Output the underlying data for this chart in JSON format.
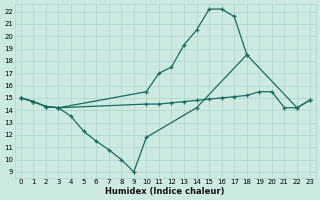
{
  "xlabel": "Humidex (Indice chaleur)",
  "bg_color": "#cce9e2",
  "grid_color": "#aed4cc",
  "line_color": "#1a6b60",
  "xlim": [
    -0.5,
    23.5
  ],
  "ylim": [
    8.5,
    22.6
  ],
  "xticks": [
    0,
    1,
    2,
    3,
    4,
    5,
    6,
    7,
    8,
    9,
    10,
    11,
    12,
    13,
    14,
    15,
    16,
    17,
    18,
    19,
    20,
    21,
    22,
    23
  ],
  "yticks": [
    9,
    10,
    11,
    12,
    13,
    14,
    15,
    16,
    17,
    18,
    19,
    20,
    21,
    22
  ],
  "line1_x": [
    0,
    1,
    2,
    3,
    10,
    11,
    12,
    13,
    14,
    15,
    16,
    17,
    18,
    22,
    23
  ],
  "line1_y": [
    15.0,
    14.7,
    14.3,
    14.2,
    15.5,
    17.0,
    17.5,
    19.3,
    20.5,
    22.2,
    22.2,
    21.6,
    18.5,
    14.2,
    14.8
  ],
  "line2_x": [
    0,
    1,
    2,
    3,
    4,
    5,
    6,
    7,
    8,
    9,
    10,
    14,
    18
  ],
  "line2_y": [
    15.0,
    14.7,
    14.3,
    14.2,
    13.5,
    12.3,
    11.5,
    10.8,
    10.0,
    9.0,
    11.8,
    14.2,
    18.5
  ],
  "line3_x": [
    0,
    1,
    2,
    3,
    10,
    11,
    12,
    13,
    14,
    15,
    16,
    17,
    18,
    19,
    20,
    21,
    22,
    23
  ],
  "line3_y": [
    15.0,
    14.7,
    14.3,
    14.2,
    14.5,
    14.5,
    14.6,
    14.7,
    14.8,
    14.9,
    15.0,
    15.1,
    15.2,
    15.5,
    15.5,
    14.2,
    14.2,
    14.8
  ]
}
